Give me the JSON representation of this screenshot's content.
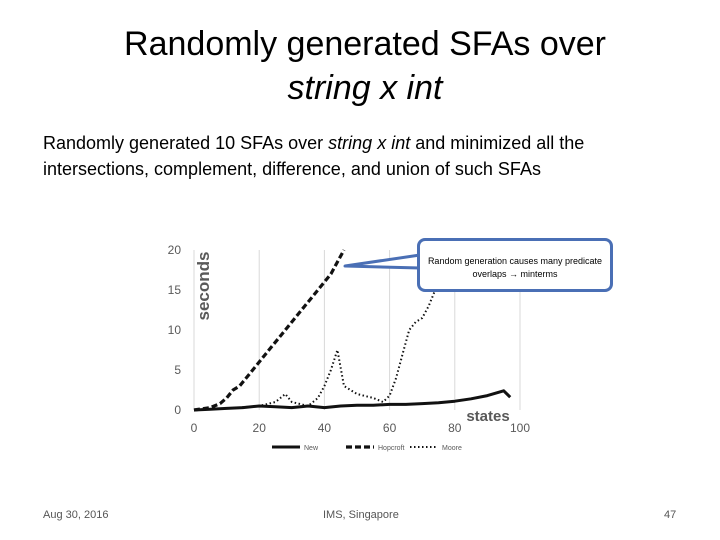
{
  "slide": {
    "title_line1": "Randomly generated SFAs over",
    "title_line2": "string x int",
    "body_part1": "Randomly generated 10 SFAs over ",
    "body_em": "string x int",
    "body_part2": " and minimized all the intersections, complement, difference, and union of such SFAs",
    "callout_text": "Random generation causes many predicate overlaps → minterms",
    "footer_date": "Aug 30, 2016",
    "footer_venue": "IMS, Singapore",
    "footer_page": "47"
  },
  "chart_data": {
    "type": "line",
    "xlabel": "states",
    "ylabel": "seconds",
    "xlim": [
      0,
      100
    ],
    "ylim": [
      0,
      20
    ],
    "x_ticks": [
      0,
      20,
      40,
      60,
      80,
      100
    ],
    "y_ticks": [
      0,
      5,
      10,
      15,
      20
    ],
    "grid": "vertical",
    "legend_position": "bottom",
    "series": [
      {
        "name": "New",
        "style": "solid",
        "points": [
          [
            0,
            0
          ],
          [
            5,
            0.1
          ],
          [
            10,
            0.2
          ],
          [
            15,
            0.3
          ],
          [
            20,
            0.5
          ],
          [
            25,
            0.4
          ],
          [
            30,
            0.3
          ],
          [
            35,
            0.5
          ],
          [
            40,
            0.3
          ],
          [
            45,
            0.5
          ],
          [
            50,
            0.6
          ],
          [
            55,
            0.6
          ],
          [
            60,
            0.7
          ],
          [
            65,
            0.7
          ],
          [
            70,
            0.8
          ],
          [
            75,
            0.9
          ],
          [
            80,
            1.1
          ],
          [
            85,
            1.4
          ],
          [
            90,
            1.8
          ],
          [
            95,
            2.4
          ],
          [
            97,
            1.6
          ]
        ]
      },
      {
        "name": "Hopcroft",
        "style": "dashed",
        "points": [
          [
            0,
            0
          ],
          [
            5,
            0.3
          ],
          [
            8,
            0.8
          ],
          [
            10,
            1.5
          ],
          [
            12,
            2.5
          ],
          [
            14,
            3
          ],
          [
            16,
            4
          ],
          [
            18,
            5
          ],
          [
            20,
            6
          ],
          [
            22,
            7
          ],
          [
            24,
            8
          ],
          [
            26,
            9
          ],
          [
            28,
            10
          ],
          [
            30,
            11
          ],
          [
            32,
            12
          ],
          [
            34,
            13
          ],
          [
            36,
            14
          ],
          [
            38,
            15
          ],
          [
            40,
            16
          ],
          [
            42,
            17
          ],
          [
            44,
            18.5
          ],
          [
            46,
            20
          ]
        ]
      },
      {
        "name": "Moore",
        "style": "dotted",
        "points": [
          [
            0,
            0
          ],
          [
            10,
            0.2
          ],
          [
            20,
            0.5
          ],
          [
            25,
            1
          ],
          [
            28,
            2
          ],
          [
            30,
            1
          ],
          [
            35,
            0.5
          ],
          [
            38,
            1.5
          ],
          [
            40,
            3
          ],
          [
            42,
            5
          ],
          [
            44,
            7.5
          ],
          [
            46,
            3
          ],
          [
            50,
            2
          ],
          [
            55,
            1.5
          ],
          [
            58,
            1
          ],
          [
            60,
            1.8
          ],
          [
            62,
            4
          ],
          [
            64,
            7
          ],
          [
            66,
            10
          ],
          [
            68,
            11
          ],
          [
            70,
            11.5
          ],
          [
            72,
            13
          ],
          [
            74,
            15
          ],
          [
            76,
            16
          ],
          [
            78,
            17
          ],
          [
            80,
            18
          ]
        ]
      }
    ]
  }
}
